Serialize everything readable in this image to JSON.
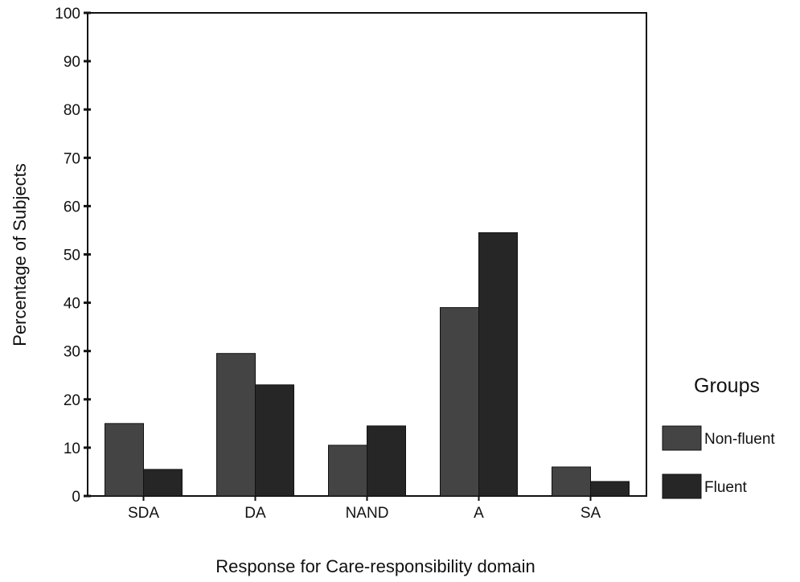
{
  "chart_data": {
    "type": "bar",
    "title": "",
    "xlabel": "Response for Care-responsibility domain",
    "ylabel": "Percentage of Subjects",
    "categories": [
      "SDA",
      "DA",
      "NAND",
      "A",
      "SA"
    ],
    "series": [
      {
        "name": "Non-fluent",
        "values": [
          15,
          29.5,
          10.5,
          39,
          6
        ]
      },
      {
        "name": "Fluent",
        "values": [
          5.5,
          23,
          14.5,
          54.5,
          3
        ]
      }
    ],
    "ylim": [
      0,
      100
    ],
    "yticks": [
      0,
      10,
      20,
      30,
      40,
      50,
      60,
      70,
      80,
      90,
      100
    ],
    "grid": false,
    "legend": {
      "title": "Groups",
      "placement": "right"
    },
    "colors": {
      "Non-fluent": "#444444",
      "Fluent": "#262626",
      "axis": "#111111",
      "background": "#ffffff"
    }
  }
}
